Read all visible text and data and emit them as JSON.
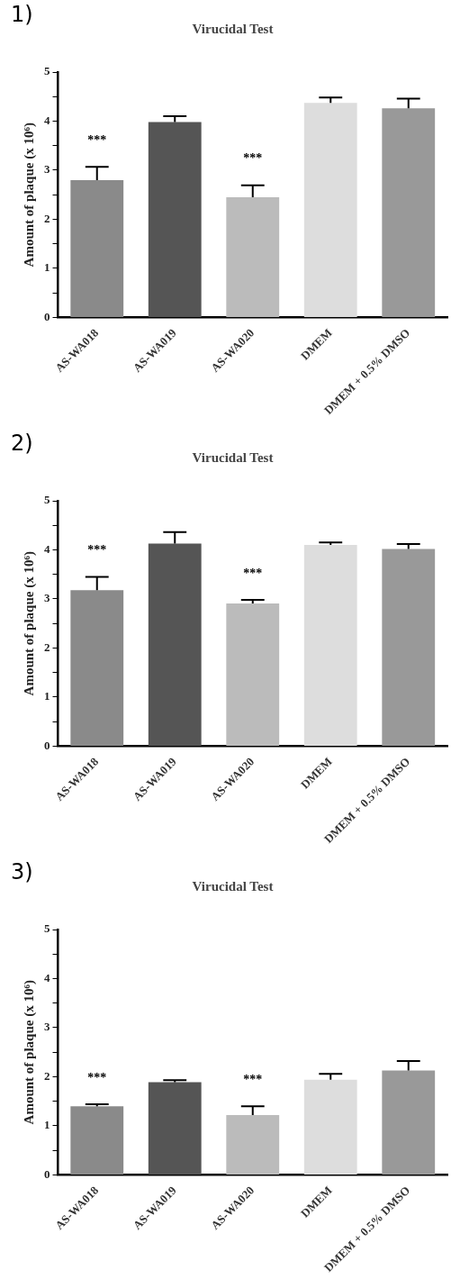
{
  "chart_data": [
    {
      "type": "bar",
      "title": "Virucidal Test",
      "ylabel": "Amount of plaque (x 10⁶)",
      "categories": [
        "AS-WA018",
        "AS-WA019",
        "AS-WA020",
        "DMEM",
        "DMEM + 0.5% DMSO"
      ],
      "values": [
        2.8,
        3.98,
        2.45,
        4.37,
        4.26
      ],
      "errors": [
        0.27,
        0.12,
        0.24,
        0.11,
        0.2
      ],
      "colors": [
        "#8a8a8a",
        "#555555",
        "#bbbbbb",
        "#dddddd",
        "#999999"
      ],
      "ylim": [
        0,
        5
      ],
      "yticks": [
        0,
        {
          "value": 0.5,
          "label": null
        },
        1,
        {
          "value": 1.5,
          "label": null
        },
        2,
        {
          "value": 2.5,
          "label": null
        },
        3,
        {
          "value": 3.5,
          "label": null
        },
        4,
        {
          "value": 4.5,
          "label": null
        },
        5
      ],
      "grid": false,
      "legend": false,
      "annotations": [
        "1)",
        "***",
        "***"
      ]
    },
    {
      "type": "bar",
      "title": "Virucidal Test",
      "ylabel": "Amount of plaque (x 10⁶)",
      "categories": [
        "AS-WA018",
        "AS-WA019",
        "AS-WA020",
        "DMEM",
        "DMEM + 0.5% DMSO"
      ],
      "values": [
        3.18,
        4.13,
        2.91,
        4.1,
        4.02
      ],
      "errors": [
        0.27,
        0.23,
        0.07,
        0.05,
        0.1
      ],
      "colors": [
        "#8a8a8a",
        "#555555",
        "#bbbbbb",
        "#dddddd",
        "#999999"
      ],
      "ylim": [
        0,
        5
      ],
      "yticks": [
        0,
        {
          "value": 0.5,
          "label": null
        },
        1,
        {
          "value": 1.5,
          "label": null
        },
        2,
        {
          "value": 2.5,
          "label": null
        },
        3,
        {
          "value": 3.5,
          "label": null
        },
        4,
        {
          "value": 4.5,
          "label": null
        },
        5
      ],
      "grid": false,
      "legend": false,
      "annotations": [
        "2)",
        "***",
        "***"
      ]
    },
    {
      "type": "bar",
      "title": "Virucidal Test",
      "ylabel": "Amount of plaque (x 10⁶)",
      "categories": [
        "AS-WA018",
        "AS-WA019",
        "AS-WA020",
        "DMEM",
        "DMEM + 0.5% DMSO"
      ],
      "values": [
        1.4,
        1.89,
        1.22,
        1.94,
        2.13
      ],
      "errors": [
        0.04,
        0.04,
        0.18,
        0.12,
        0.19
      ],
      "colors": [
        "#8a8a8a",
        "#555555",
        "#bbbbbb",
        "#dddddd",
        "#999999"
      ],
      "ylim": [
        0,
        5
      ],
      "yticks": [
        0,
        {
          "value": 0.5,
          "label": null
        },
        1,
        {
          "value": 1.5,
          "label": null
        },
        2,
        {
          "value": 2.5,
          "label": null
        },
        3,
        {
          "value": 3.5,
          "label": null
        },
        4,
        {
          "value": 4.5,
          "label": null
        },
        5
      ],
      "grid": false,
      "legend": false,
      "annotations": [
        "3)",
        "***",
        "***"
      ]
    }
  ]
}
